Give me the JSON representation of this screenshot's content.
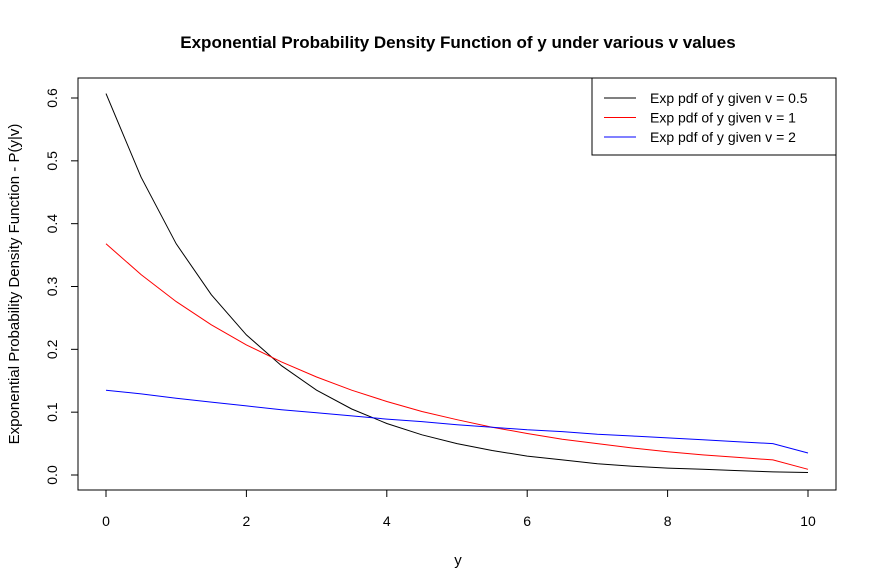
{
  "chart_data": {
    "type": "line",
    "title": "Exponential Probability Density Function of y under various v values",
    "xlabel": "y",
    "ylabel": "Exponential Probability Density Function - P(y|v)",
    "xlim": [
      0,
      10
    ],
    "ylim": [
      0,
      0.6
    ],
    "xticks": [
      "0",
      "2",
      "4",
      "6",
      "8",
      "10"
    ],
    "yticks": [
      "0.0",
      "0.1",
      "0.2",
      "0.3",
      "0.4",
      "0.5",
      "0.6"
    ],
    "legend_position": "top-right",
    "grid": false,
    "x": [
      0,
      0.5,
      1,
      1.5,
      2,
      2.5,
      3,
      3.5,
      4,
      4.5,
      5,
      5.5,
      6,
      6.5,
      7,
      7.5,
      8,
      8.5,
      9,
      9.5,
      10
    ],
    "series": [
      {
        "name": "Exp pdf of y given v = 0.5",
        "color": "#000000",
        "values": [
          0.607,
          0.474,
          0.368,
          0.287,
          0.223,
          0.174,
          0.135,
          0.105,
          0.082,
          0.064,
          0.05,
          0.039,
          0.03,
          0.024,
          0.018,
          0.014,
          0.011,
          0.009,
          0.007,
          0.005,
          0.004
        ]
      },
      {
        "name": "Exp pdf of y given v = 1",
        "color": "#ff0000",
        "values": [
          0.368,
          0.319,
          0.276,
          0.239,
          0.207,
          0.18,
          0.156,
          0.135,
          0.117,
          0.101,
          0.088,
          0.076,
          0.066,
          0.057,
          0.05,
          0.043,
          0.037,
          0.032,
          0.028,
          0.024,
          0.009
        ]
      },
      {
        "name": "Exp pdf of y given v = 2",
        "color": "#0000ff",
        "values": [
          0.135,
          0.129,
          0.122,
          0.116,
          0.11,
          0.104,
          0.099,
          0.094,
          0.089,
          0.085,
          0.08,
          0.076,
          0.072,
          0.069,
          0.065,
          0.062,
          0.059,
          0.056,
          0.053,
          0.05,
          0.035
        ]
      }
    ]
  }
}
